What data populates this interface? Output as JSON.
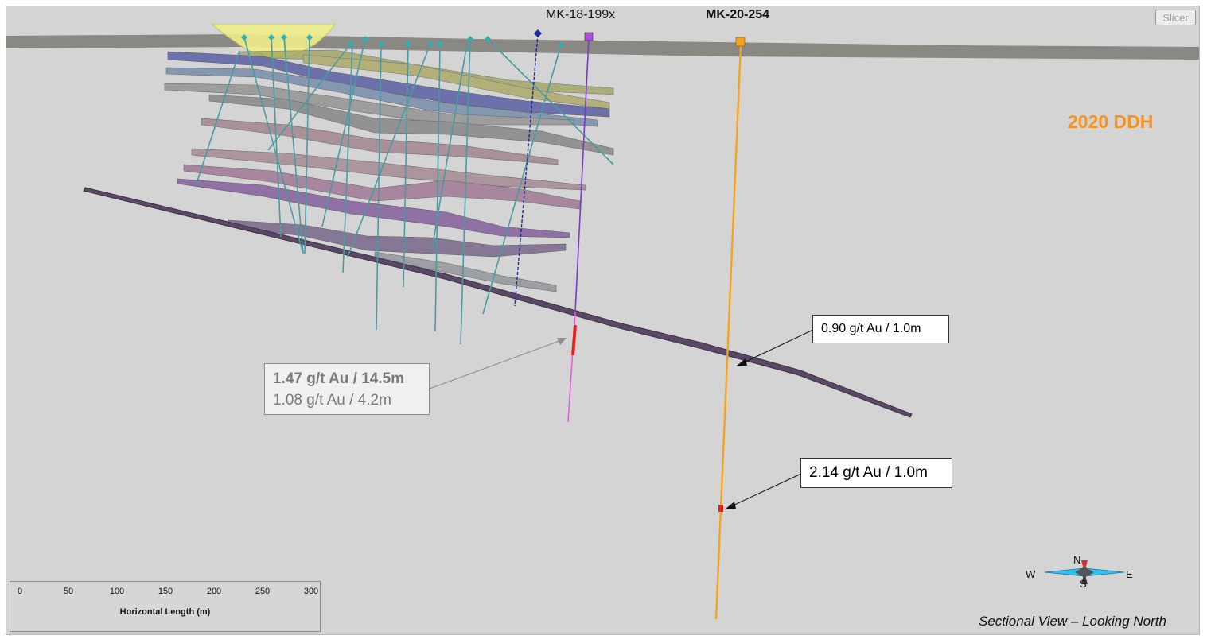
{
  "toolbar": {
    "slicer_label": "Slicer"
  },
  "section": {
    "drill_holes": {
      "hole_1": {
        "name": "MK-18-199x",
        "color": "#e45fe0"
      },
      "hole_2": {
        "name": "MK-20-254",
        "color": "#f7a21a"
      }
    },
    "campaign_label": "2020 DDH",
    "campaign_color": "#f7931e",
    "intercept_color": "#e8201e"
  },
  "callouts": {
    "upper_right": "0.90 g/t Au / 1.0m",
    "lower_right": "2.14 g/t Au / 1.0m",
    "left_line1": "1.47 g/t Au / 14.5m",
    "left_line2": "1.08 g/t Au / 4.2m"
  },
  "scale_bar": {
    "title": "Horizontal Length (m)",
    "ticks": [
      "0",
      "50",
      "100",
      "150",
      "200",
      "250",
      "300"
    ]
  },
  "compass": {
    "west": "W",
    "east": "E",
    "north": "N",
    "south": "S"
  },
  "view_caption": "Sectional View – Looking North"
}
